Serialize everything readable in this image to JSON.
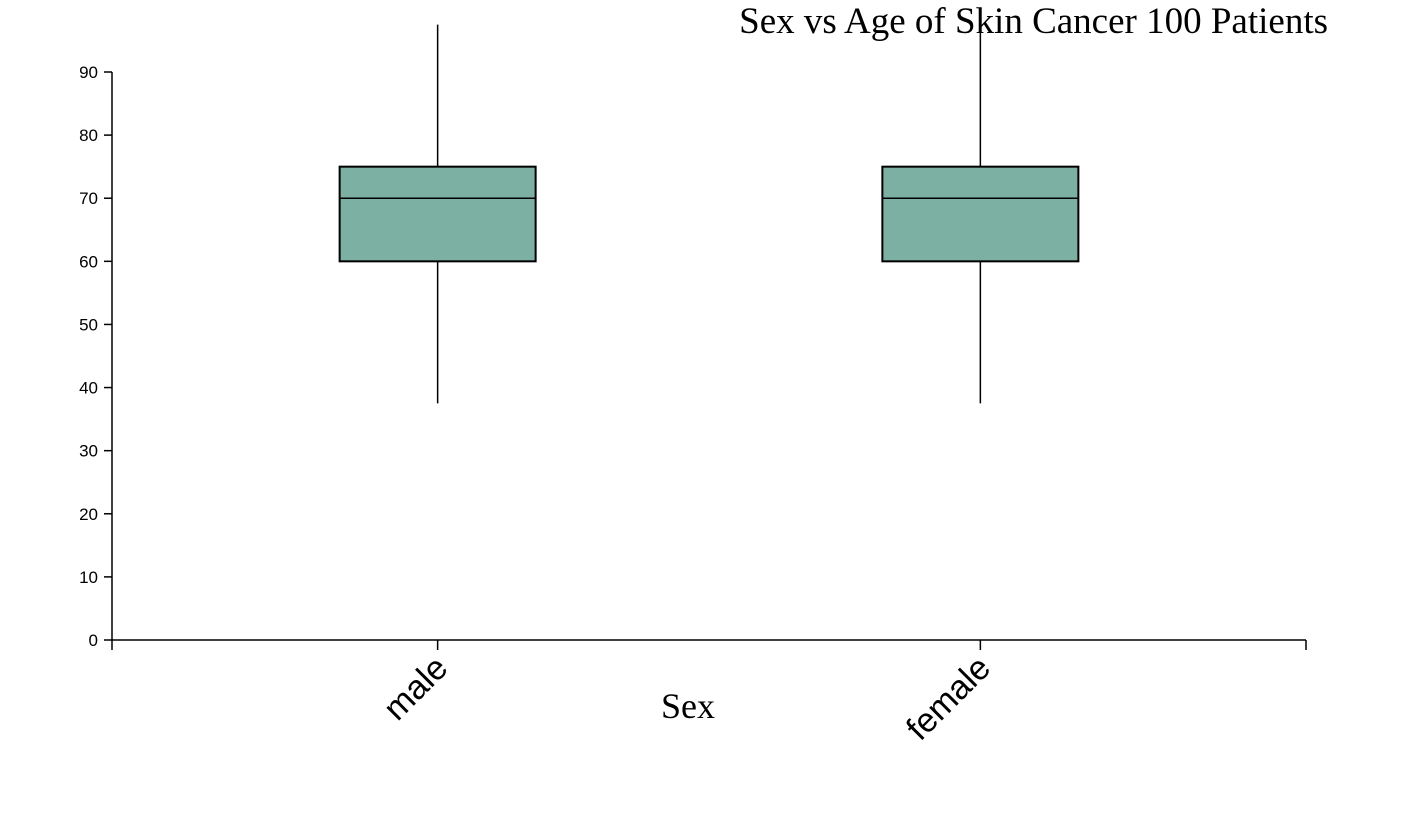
{
  "chart_data": {
    "type": "box",
    "title": "Sex vs Age of Skin Cancer 100 Patients",
    "x_label": "Sex",
    "categories": [
      "male",
      "female"
    ],
    "boxes": [
      {
        "whislo": 37.5,
        "q1": 60,
        "med": 70,
        "q3": 75,
        "whishi": 97.5
      },
      {
        "whislo": 37.5,
        "q1": 60,
        "med": 70,
        "q3": 75,
        "whishi": 97.5
      }
    ],
    "color": "#7bb0a2",
    "ylim": [
      0,
      90
    ],
    "yticks": [
      0,
      10,
      20,
      30,
      40,
      50,
      60,
      70,
      80,
      90
    ]
  }
}
